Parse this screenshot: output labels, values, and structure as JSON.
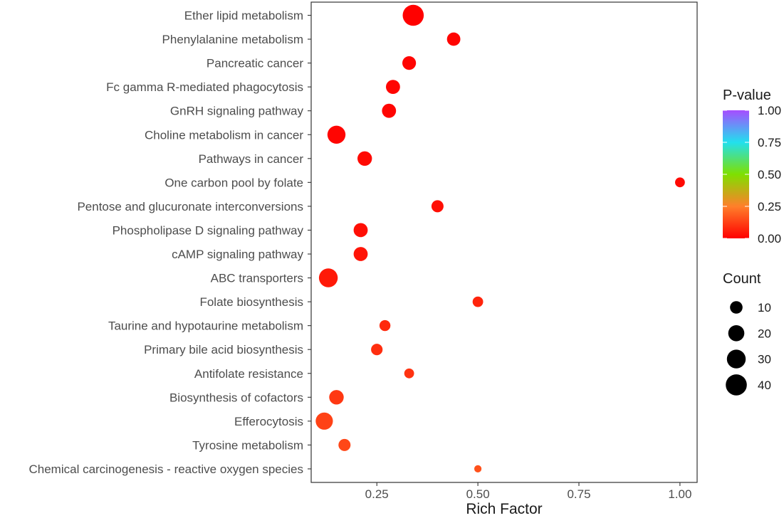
{
  "chart_data": {
    "type": "scatter",
    "xlabel": "Rich Factor",
    "ylabel": "",
    "xlim": [
      0.0875,
      1.0425
    ],
    "xticks": [
      0.25,
      0.5,
      0.75,
      1.0
    ],
    "xtick_labels": [
      "0.25",
      "0.50",
      "0.75",
      "1.00"
    ],
    "grid": false,
    "points": [
      {
        "pathway": "Ether lipid metabolism",
        "rich_factor": 0.34,
        "p_value": 0.001,
        "count": 40
      },
      {
        "pathway": "Phenylalanine metabolism",
        "rich_factor": 0.44,
        "p_value": 0.01,
        "count": 12
      },
      {
        "pathway": "Pancreatic cancer",
        "rich_factor": 0.33,
        "p_value": 0.01,
        "count": 13
      },
      {
        "pathway": "Fc gamma R-mediated phagocytosis",
        "rich_factor": 0.29,
        "p_value": 0.01,
        "count": 14
      },
      {
        "pathway": "GnRH signaling pathway",
        "rich_factor": 0.28,
        "p_value": 0.01,
        "count": 14
      },
      {
        "pathway": "Choline metabolism in cancer",
        "rich_factor": 0.15,
        "p_value": 0.01,
        "count": 27
      },
      {
        "pathway": "Pathways in cancer",
        "rich_factor": 0.22,
        "p_value": 0.02,
        "count": 15
      },
      {
        "pathway": "One carbon pool by folate",
        "rich_factor": 1.0,
        "p_value": 0.02,
        "count": 5
      },
      {
        "pathway": "Pentose and glucuronate interconversions",
        "rich_factor": 0.4,
        "p_value": 0.03,
        "count": 9
      },
      {
        "pathway": "Phospholipase D signaling pathway",
        "rich_factor": 0.21,
        "p_value": 0.03,
        "count": 14
      },
      {
        "pathway": "cAMP signaling pathway",
        "rich_factor": 0.21,
        "p_value": 0.04,
        "count": 14
      },
      {
        "pathway": "ABC transporters",
        "rich_factor": 0.13,
        "p_value": 0.05,
        "count": 30
      },
      {
        "pathway": "Folate biosynthesis",
        "rich_factor": 0.5,
        "p_value": 0.07,
        "count": 6
      },
      {
        "pathway": "Taurine and hypotaurine metabolism",
        "rich_factor": 0.27,
        "p_value": 0.08,
        "count": 7
      },
      {
        "pathway": "Primary bile acid biosynthesis",
        "rich_factor": 0.25,
        "p_value": 0.09,
        "count": 8
      },
      {
        "pathway": "Antifolate resistance",
        "rich_factor": 0.33,
        "p_value": 0.1,
        "count": 5
      },
      {
        "pathway": "Biosynthesis of cofactors",
        "rich_factor": 0.15,
        "p_value": 0.11,
        "count": 15
      },
      {
        "pathway": "Efferocytosis",
        "rich_factor": 0.12,
        "p_value": 0.13,
        "count": 24
      },
      {
        "pathway": "Tyrosine metabolism",
        "rich_factor": 0.17,
        "p_value": 0.14,
        "count": 9
      },
      {
        "pathway": "Chemical carcinogenesis - reactive oxygen species",
        "rich_factor": 0.5,
        "p_value": 0.16,
        "count": 2
      }
    ],
    "color_legend": {
      "title": "P-value",
      "ticks": [
        0.0,
        0.25,
        0.5,
        0.75,
        1.0
      ],
      "tick_labels": [
        "0.00",
        "0.25",
        "0.50",
        "0.75",
        "1.00"
      ],
      "colors": [
        "#ff0000",
        "#ff7f2a",
        "#7fe000",
        "#22e0ee",
        "#a64dff"
      ]
    },
    "size_legend": {
      "title": "Count",
      "values": [
        10,
        20,
        30,
        40
      ],
      "labels": [
        "10",
        "20",
        "30",
        "40"
      ]
    }
  }
}
